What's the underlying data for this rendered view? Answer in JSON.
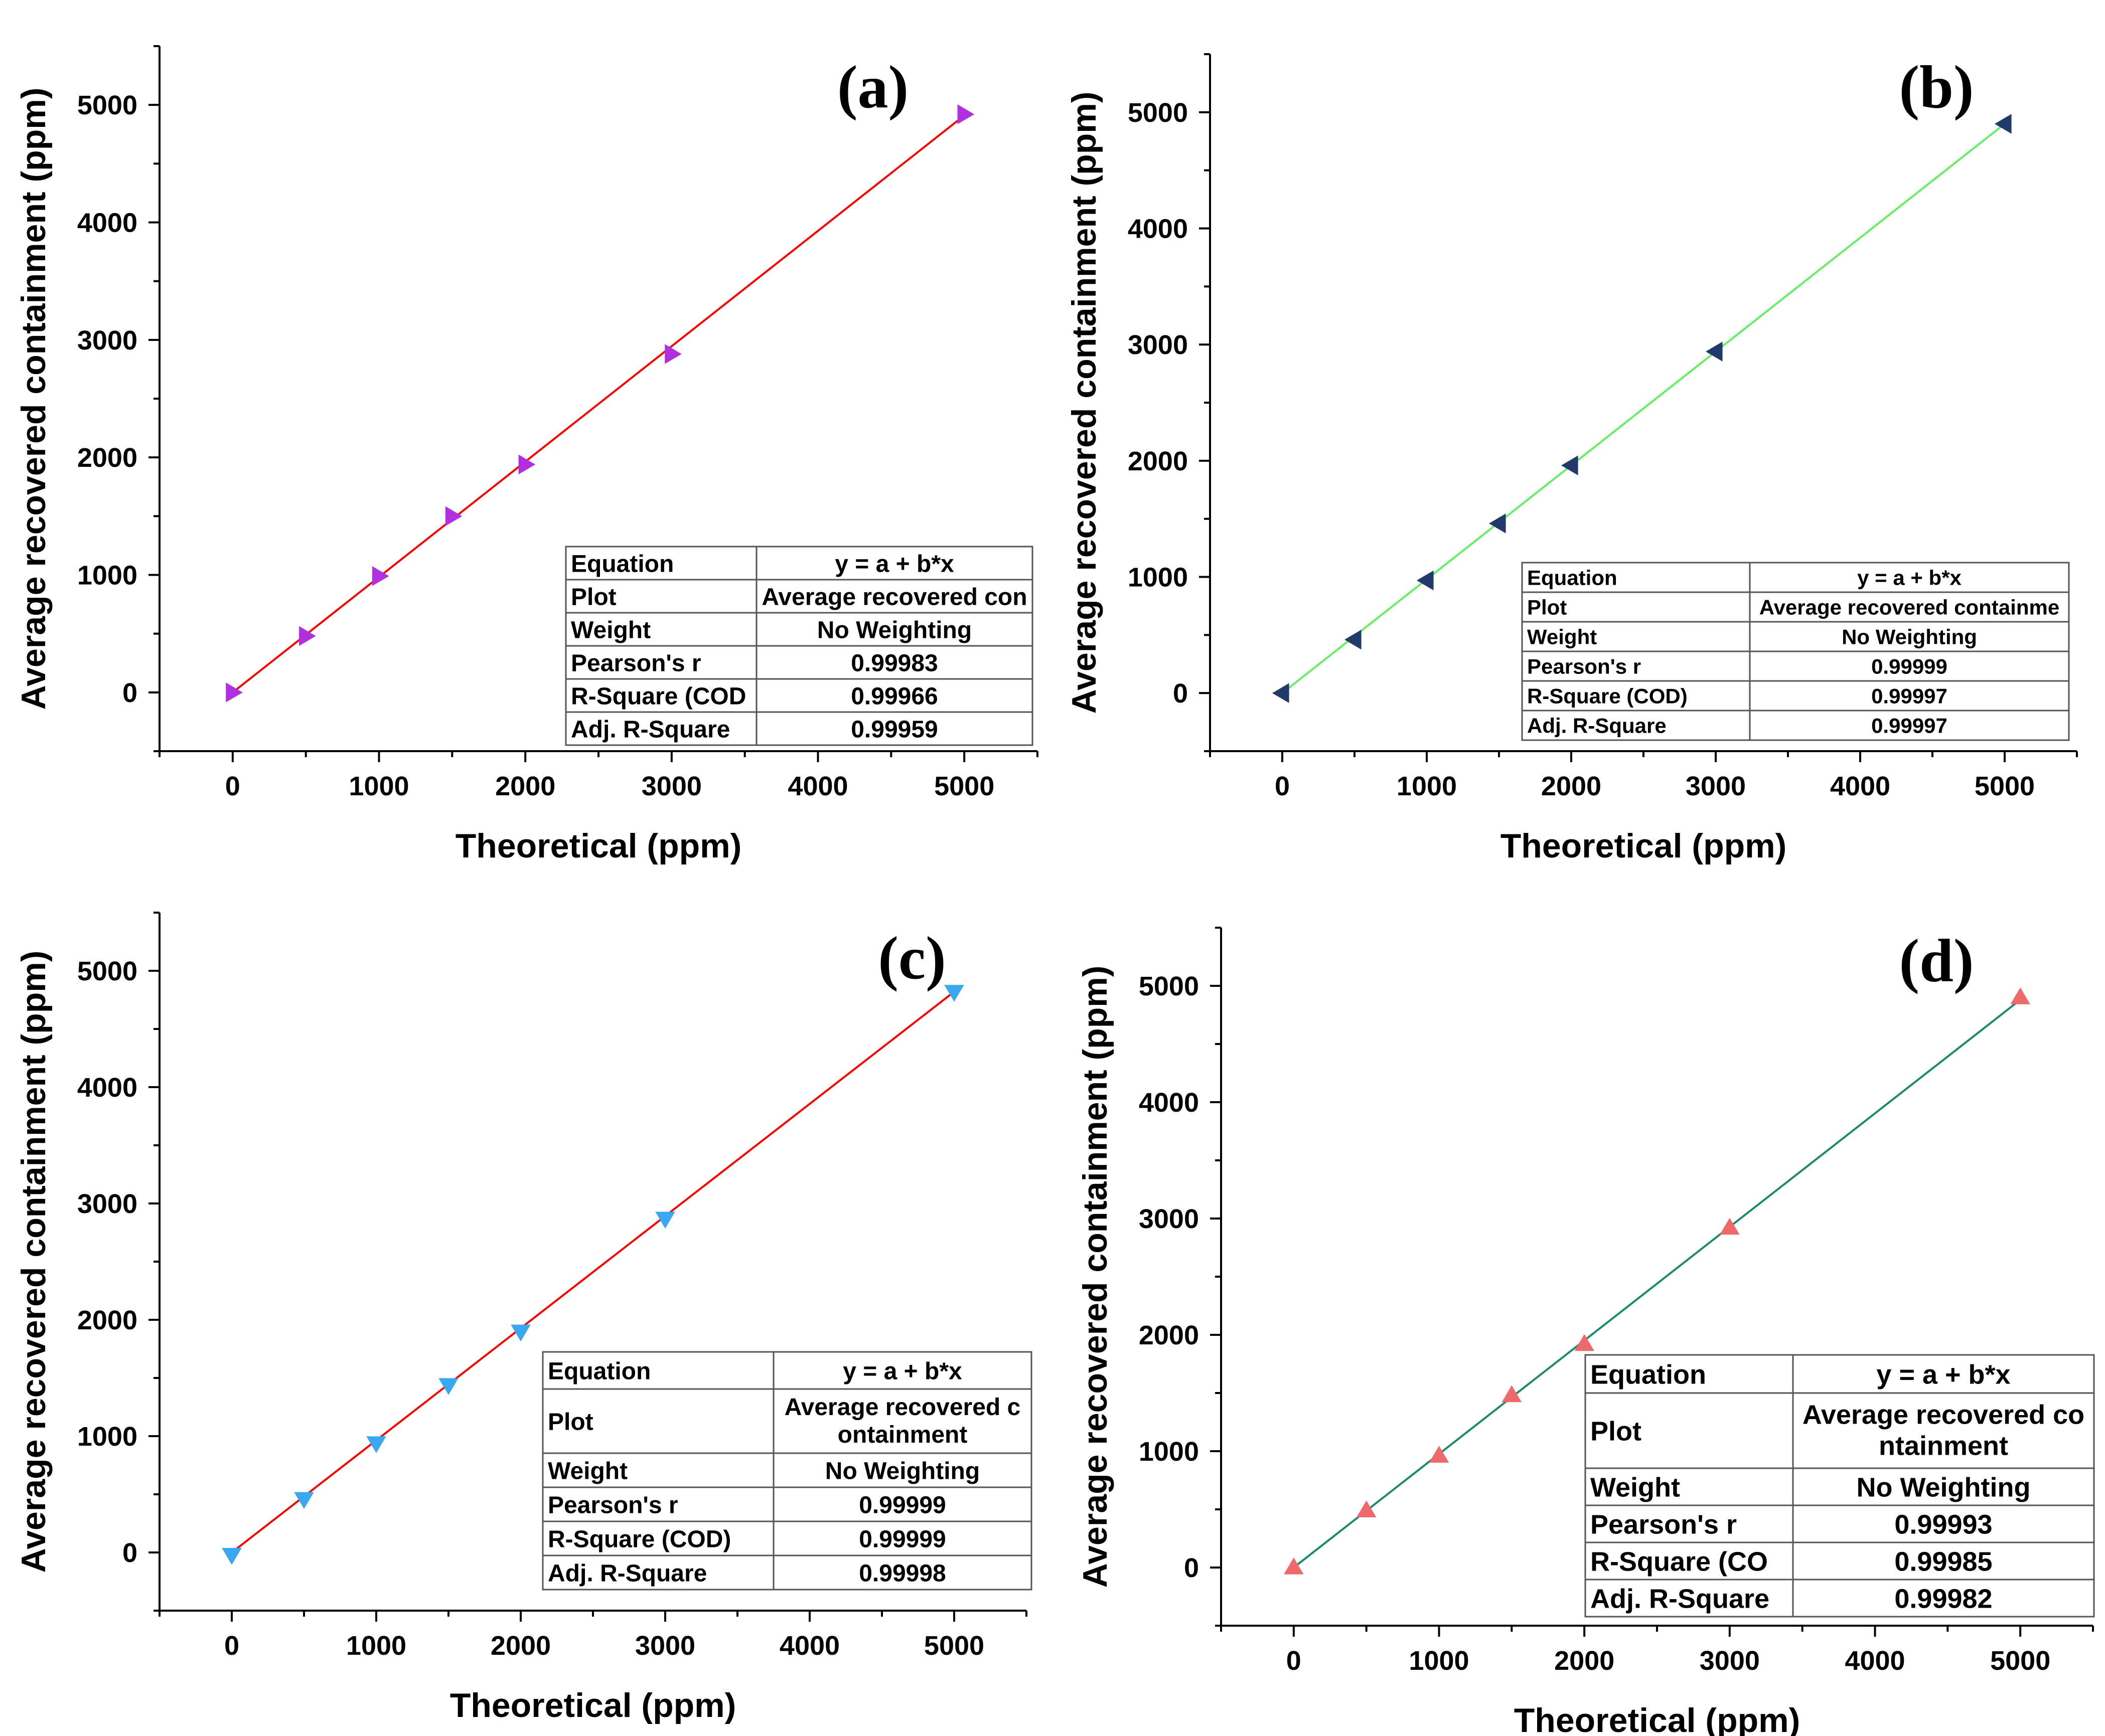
{
  "chart_data": [
    {
      "type": "scatter",
      "panel_label": "(a)",
      "title": "",
      "xlabel": "Theoretical (ppm)",
      "ylabel": "Average recovered containment (ppm)",
      "xlim": [
        -500,
        5500
      ],
      "ylim": [
        -500,
        5500
      ],
      "xticks": [
        0,
        1000,
        2000,
        3000,
        4000,
        5000
      ],
      "yticks": [
        0,
        1000,
        2000,
        3000,
        4000,
        5000
      ],
      "xtick_labels": [
        "0",
        "1000",
        "2000",
        "3000",
        "4000",
        "5000"
      ],
      "ytick_labels": [
        "0",
        "1000",
        "2000",
        "3000",
        "4000",
        "5000"
      ],
      "grid": false,
      "marker": "triangle-right",
      "marker_color": "#b030e0",
      "fit_color": "#ff0000",
      "series": [
        {
          "name": "Average recovered containment",
          "x": [
            0,
            500,
            1000,
            1500,
            2000,
            3000,
            5000
          ],
          "y": [
            0,
            480,
            990,
            1500,
            1940,
            2880,
            4920
          ]
        }
      ],
      "fit_line": {
        "x": [
          0,
          5000
        ],
        "y": [
          0,
          4910
        ]
      },
      "stats_table": [
        [
          "Equation",
          "y = a + b*x"
        ],
        [
          "Plot",
          "Average recovered con"
        ],
        [
          "Weight",
          "No Weighting"
        ],
        [
          "Pearson's r",
          "0.99983"
        ],
        [
          "R-Square (COD",
          "0.99966"
        ],
        [
          "Adj. R-Square",
          "0.99959"
        ]
      ]
    },
    {
      "type": "scatter",
      "panel_label": "(b)",
      "title": "",
      "xlabel": "Theoretical (ppm)",
      "ylabel": "Average recovered containment (ppm)",
      "xlim": [
        -500,
        5500
      ],
      "ylim": [
        -500,
        5500
      ],
      "xticks": [
        0,
        1000,
        2000,
        3000,
        4000,
        5000
      ],
      "yticks": [
        0,
        1000,
        2000,
        3000,
        4000,
        5000
      ],
      "xtick_labels": [
        "0",
        "1000",
        "2000",
        "3000",
        "4000",
        "5000"
      ],
      "ytick_labels": [
        "0",
        "1000",
        "2000",
        "3000",
        "4000",
        "5000"
      ],
      "grid": false,
      "marker": "triangle-left",
      "marker_color": "#223a6b",
      "fit_color": "#66ee66",
      "series": [
        {
          "name": "Average recovered containment",
          "x": [
            0,
            500,
            1000,
            1500,
            2000,
            3000,
            5000
          ],
          "y": [
            0,
            460,
            970,
            1460,
            1960,
            2940,
            4900
          ]
        }
      ],
      "fit_line": {
        "x": [
          0,
          5000
        ],
        "y": [
          0,
          4900
        ]
      },
      "stats_table": [
        [
          "Equation",
          "y = a + b*x"
        ],
        [
          "Plot",
          "Average recovered containme"
        ],
        [
          "Weight",
          "No Weighting"
        ],
        [
          "Pearson's r",
          "0.99999"
        ],
        [
          "R-Square (COD)",
          "0.99997"
        ],
        [
          "Adj. R-Square",
          "0.99997"
        ]
      ]
    },
    {
      "type": "scatter",
      "panel_label": "(c)",
      "title": "",
      "xlabel": "Theoretical (ppm)",
      "ylabel": "Average recovered containment (ppm)",
      "xlim": [
        -500,
        5500
      ],
      "ylim": [
        -500,
        5500
      ],
      "xticks": [
        0,
        1000,
        2000,
        3000,
        4000,
        5000
      ],
      "yticks": [
        0,
        1000,
        2000,
        3000,
        4000,
        5000
      ],
      "xtick_labels": [
        "0",
        "1000",
        "2000",
        "3000",
        "4000",
        "5000"
      ],
      "ytick_labels": [
        "0",
        "1000",
        "2000",
        "3000",
        "4000",
        "5000"
      ],
      "grid": false,
      "marker": "triangle-down",
      "marker_color": "#3aa8f0",
      "fit_color": "#ff0000",
      "series": [
        {
          "name": "Average recovered containment",
          "x": [
            0,
            500,
            1000,
            1500,
            2000,
            3000,
            5000
          ],
          "y": [
            -20,
            460,
            940,
            1440,
            1900,
            2870,
            4820
          ]
        }
      ],
      "fit_line": {
        "x": [
          0,
          5000
        ],
        "y": [
          0,
          4820
        ]
      },
      "stats_table": [
        [
          "Equation",
          "y = a + b*x"
        ],
        [
          "Plot",
          "Average recovered c|ontainment"
        ],
        [
          "Weight",
          "No Weighting"
        ],
        [
          "Pearson's r",
          "0.99999"
        ],
        [
          "R-Square (COD)",
          "0.99999"
        ],
        [
          "Adj. R-Square",
          "0.99998"
        ]
      ]
    },
    {
      "type": "scatter",
      "panel_label": "(d)",
      "title": "",
      "xlabel": "Theoretical (ppm)",
      "ylabel": "Average recovered containment (ppm)",
      "xlim": [
        -500,
        5500
      ],
      "ylim": [
        -500,
        5500
      ],
      "xticks": [
        0,
        1000,
        2000,
        3000,
        4000,
        5000
      ],
      "yticks": [
        0,
        1000,
        2000,
        3000,
        4000,
        5000
      ],
      "xtick_labels": [
        "0",
        "1000",
        "2000",
        "3000",
        "4000",
        "5000"
      ],
      "ytick_labels": [
        "0",
        "1000",
        "2000",
        "3000",
        "4000",
        "5000"
      ],
      "grid": false,
      "marker": "triangle-up",
      "marker_color": "#ee6a6a",
      "fit_color": "#1a8a6a",
      "series": [
        {
          "name": "Average recovered containment",
          "x": [
            0,
            500,
            1000,
            1500,
            2000,
            3000,
            5000
          ],
          "y": [
            0,
            490,
            960,
            1480,
            1920,
            2920,
            4900
          ]
        }
      ],
      "fit_line": {
        "x": [
          0,
          5000
        ],
        "y": [
          0,
          4880
        ]
      },
      "stats_table": [
        [
          "Equation",
          "y = a + b*x"
        ],
        [
          "Plot",
          "Average recovered co|ntainment"
        ],
        [
          "Weight",
          "No Weighting"
        ],
        [
          "Pearson's r",
          "0.99993"
        ],
        [
          "R-Square (CO",
          "0.99985"
        ],
        [
          "Adj. R-Square",
          "0.99982"
        ]
      ]
    }
  ]
}
